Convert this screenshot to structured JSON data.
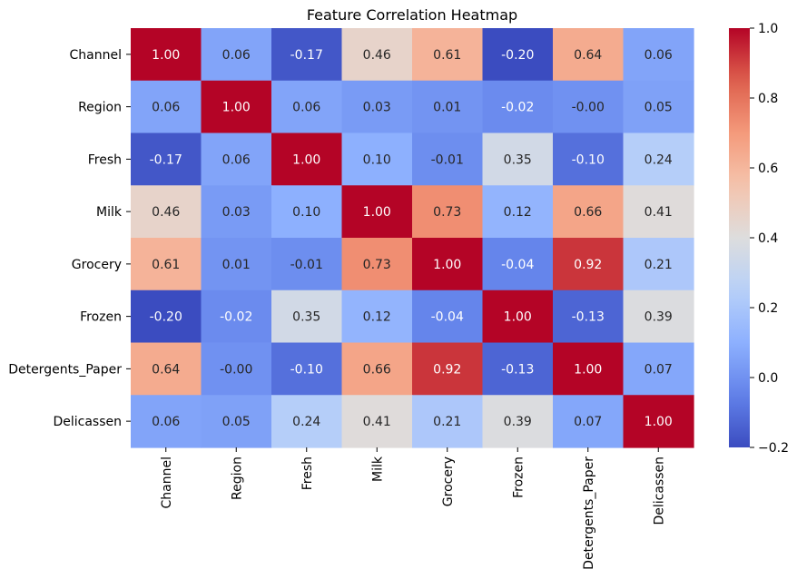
{
  "chart_data": {
    "type": "heatmap",
    "title": "Feature Correlation Heatmap",
    "xlabel": "",
    "ylabel": "",
    "categories": [
      "Channel",
      "Region",
      "Fresh",
      "Milk",
      "Grocery",
      "Frozen",
      "Detergents_Paper",
      "Delicassen"
    ],
    "values": [
      [
        1.0,
        0.06,
        -0.17,
        0.46,
        0.61,
        -0.2,
        0.64,
        0.06
      ],
      [
        0.06,
        1.0,
        0.06,
        0.03,
        0.01,
        -0.02,
        -0.0,
        0.05
      ],
      [
        -0.17,
        0.06,
        1.0,
        0.1,
        -0.01,
        0.35,
        -0.1,
        0.24
      ],
      [
        0.46,
        0.03,
        0.1,
        1.0,
        0.73,
        0.12,
        0.66,
        0.41
      ],
      [
        0.61,
        0.01,
        -0.01,
        0.73,
        1.0,
        -0.04,
        0.92,
        0.21
      ],
      [
        -0.2,
        -0.02,
        0.35,
        0.12,
        -0.04,
        1.0,
        -0.13,
        0.39
      ],
      [
        0.64,
        -0.0,
        -0.1,
        0.66,
        0.92,
        -0.13,
        1.0,
        0.07
      ],
      [
        0.06,
        0.05,
        0.24,
        0.41,
        0.21,
        0.39,
        0.07,
        1.0
      ]
    ],
    "colormap": "coolwarm",
    "vmin": -0.2,
    "vmax": 1.0,
    "colorbar_ticks": [
      "-0.2",
      "0.0",
      "0.2",
      "0.4",
      "0.6",
      "0.8",
      "1.0"
    ],
    "annotation_format": "2 decimals",
    "grid": false,
    "legend": "colorbar-right"
  }
}
